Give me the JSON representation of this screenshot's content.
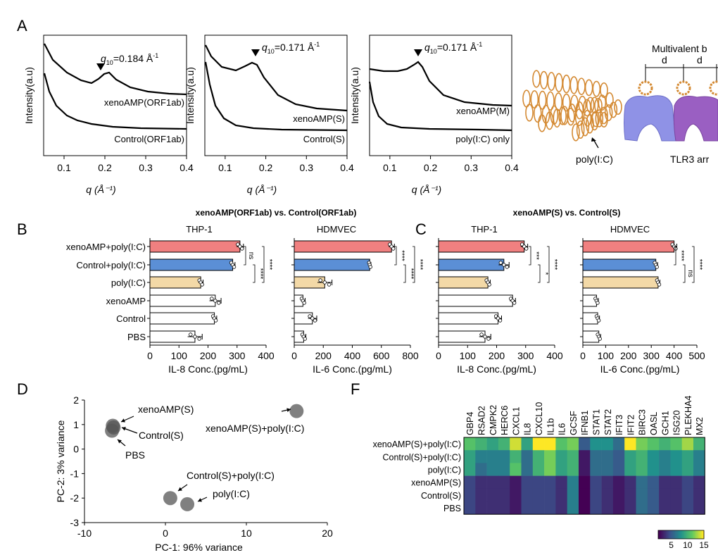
{
  "panel_labels": {
    "A": "A",
    "B": "B",
    "C": "C",
    "D": "D",
    "F": "F"
  },
  "saxs": {
    "ylabel": "Intensity(a.u)",
    "xlabel": "q (Å⁻¹)",
    "ticks": [
      "0.1",
      "0.2",
      "0.3",
      "0.4"
    ],
    "plots": [
      {
        "peak_prefix": "q",
        "peak_sub": "10",
        "peak_value": "=0.184 Å",
        "peak_sup": "-1",
        "upper": "xenoAMP(ORF1ab)",
        "lower": "Control(ORF1ab)"
      },
      {
        "peak_prefix": "q",
        "peak_sub": "10",
        "peak_value": "=0.171 Å",
        "peak_sup": "-1",
        "upper": "xenoAMP(S)",
        "lower": "Control(S)"
      },
      {
        "peak_prefix": "q",
        "peak_sub": "10",
        "peak_value": "=0.171 Å",
        "peak_sup": "-1",
        "upper": "xenoAMP(M)",
        "lower": "poly(I:C) only"
      }
    ]
  },
  "structure": {
    "title": "Multivalent b",
    "d1": "d",
    "d2": "d",
    "poly_label": "poly(I:C)",
    "tlr_label": "TLR3 arr",
    "colors": {
      "helix": "#d48a33",
      "tlr_blue": "#8f92e6",
      "tlr_purple": "#9a5fc2"
    }
  },
  "titles": {
    "B": "xenoAMP(ORF1ab) vs. Control(ORF1ab)",
    "C": "xenoAMP(S) vs. Control(S)"
  },
  "bar_colors": [
    "#f08080",
    "#5b8fd6",
    "#f3d9a7",
    "#ffffff",
    "#ffffff",
    "#ffffff"
  ],
  "chart_data": [
    {
      "type": "bar",
      "orientation": "horizontal",
      "title": "THP-1",
      "categories": [
        "xenoAMP+poly(I:C)",
        "Control+poly(I:C)",
        "poly(I:C)",
        "xenoAMP",
        "Control",
        "PBS"
      ],
      "values": [
        310,
        285,
        175,
        225,
        222,
        155
      ],
      "errors": [
        12,
        8,
        8,
        20,
        8,
        25
      ],
      "xlabel": "IL-8 Conc.(pg/mL)",
      "xlim": [
        0,
        400
      ],
      "xticks": [
        0,
        100,
        200,
        300,
        400
      ],
      "significance": [
        "ns",
        "****",
        "****"
      ]
    },
    {
      "type": "bar",
      "orientation": "horizontal",
      "title": "HDMVEC",
      "categories": [
        "xenoAMP+poly(I:C)",
        "Control+poly(I:C)",
        "poly(I:C)",
        "xenoAMP",
        "Control",
        "PBS"
      ],
      "values": [
        670,
        520,
        210,
        60,
        125,
        65
      ],
      "errors": [
        20,
        8,
        50,
        15,
        30,
        15
      ],
      "xlabel": "IL-6 Conc.(pg/mL)",
      "xlim": [
        0,
        800
      ],
      "xticks": [
        0,
        200,
        400,
        600,
        800
      ],
      "significance": [
        "****",
        "****",
        "****"
      ]
    },
    {
      "type": "bar",
      "orientation": "horizontal",
      "title": "THP-1",
      "categories": [
        "xenoAMP+poly(I:C)",
        "Control+poly(I:C)",
        "poly(I:C)",
        "xenoAMP",
        "Control",
        "PBS"
      ],
      "values": [
        295,
        225,
        170,
        255,
        205,
        160
      ],
      "errors": [
        12,
        18,
        8,
        10,
        12,
        20
      ],
      "xlabel": "IL-8 Conc.(pg/mL)",
      "xlim": [
        0,
        400
      ],
      "xticks": [
        0,
        100,
        200,
        300,
        400
      ],
      "significance": [
        "***",
        "*",
        "****"
      ]
    },
    {
      "type": "bar",
      "orientation": "horizontal",
      "title": "HDMVEC",
      "categories": [
        "xenoAMP+poly(I:C)",
        "Control+poly(I:C)",
        "poly(I:C)",
        "xenoAMP",
        "Control",
        "PBS"
      ],
      "values": [
        400,
        320,
        330,
        60,
        65,
        70
      ],
      "errors": [
        12,
        8,
        8,
        8,
        8,
        8
      ],
      "xlabel": "IL-6 Conc.(pg/mL)",
      "xlim": [
        0,
        500
      ],
      "xticks": [
        0,
        100,
        200,
        300,
        400,
        500
      ],
      "significance": [
        "****",
        "ns",
        "****"
      ]
    },
    {
      "type": "scatter",
      "title": "",
      "xlabel": "PC-1: 96% variance",
      "ylabel": "PC-2: 3% variance",
      "xlim": [
        -10,
        20
      ],
      "ylim": [
        -3,
        2
      ],
      "xticks": [
        -10,
        0,
        10,
        20
      ],
      "yticks": [
        -3,
        -2,
        -1,
        0,
        1,
        2
      ],
      "points": [
        {
          "label": "xenoAMP(S)",
          "x": -6.5,
          "y": 0.95
        },
        {
          "label": "Control(S)",
          "x": -6.4,
          "y": 0.88
        },
        {
          "label": "PBS",
          "x": -6.6,
          "y": 0.75
        },
        {
          "label": "xenoAMP(S)+poly(I:C)",
          "x": 16.2,
          "y": 1.55
        },
        {
          "label": "Control(S)+poly(I:C)",
          "x": 0.6,
          "y": -2.0
        },
        {
          "label": "poly(I:C)",
          "x": 2.7,
          "y": -2.25
        }
      ]
    },
    {
      "type": "heatmap",
      "title": "",
      "columns": [
        "GBP4",
        "RSAD2",
        "CMPK2",
        "HERC6",
        "CXCL1",
        "IL8",
        "CXCL10",
        "IL1b",
        "IL6",
        "GCSF",
        "IFNB1",
        "STAT1",
        "STAT2",
        "IFIT3",
        "IFIT2",
        "BIRC3",
        "OASL",
        "GCH1",
        "ISG20",
        "PLEKHA4",
        "MX2"
      ],
      "rows": [
        "xenoAMP(S)+poly(I:C)",
        "Control(S)+poly(I:C)",
        "poly(I:C)",
        "xenoAMP(S)",
        "Control(S)",
        "PBS"
      ],
      "values": [
        [
          11,
          10,
          9,
          10,
          14,
          9,
          15,
          15,
          11,
          12,
          5,
          8,
          8,
          6,
          15,
          12,
          11,
          10,
          11,
          13,
          10
        ],
        [
          9,
          7,
          7,
          7,
          10,
          6,
          10,
          12,
          9,
          10,
          2,
          6,
          6,
          5,
          9,
          10,
          8,
          7,
          8,
          9,
          7
        ],
        [
          9,
          6,
          7,
          7,
          11,
          6,
          10,
          12,
          9,
          10,
          2,
          6,
          6,
          5,
          9,
          10,
          8,
          7,
          8,
          9,
          7
        ],
        [
          4,
          3,
          3,
          3,
          2,
          4,
          4,
          4,
          3,
          7,
          1,
          4,
          3,
          2,
          3,
          6,
          5,
          3,
          3,
          4,
          3
        ],
        [
          4,
          3,
          3,
          3,
          2,
          4,
          4,
          4,
          3,
          7,
          1,
          4,
          3,
          2,
          3,
          6,
          5,
          3,
          3,
          4,
          3
        ],
        [
          4,
          3,
          3,
          3,
          2,
          4,
          4,
          4,
          3,
          7,
          1,
          4,
          3,
          2,
          3,
          6,
          5,
          3,
          3,
          4,
          3
        ]
      ],
      "colorbar_ticks": [
        5,
        10,
        15
      ],
      "vmin": 1,
      "vmax": 15
    }
  ]
}
